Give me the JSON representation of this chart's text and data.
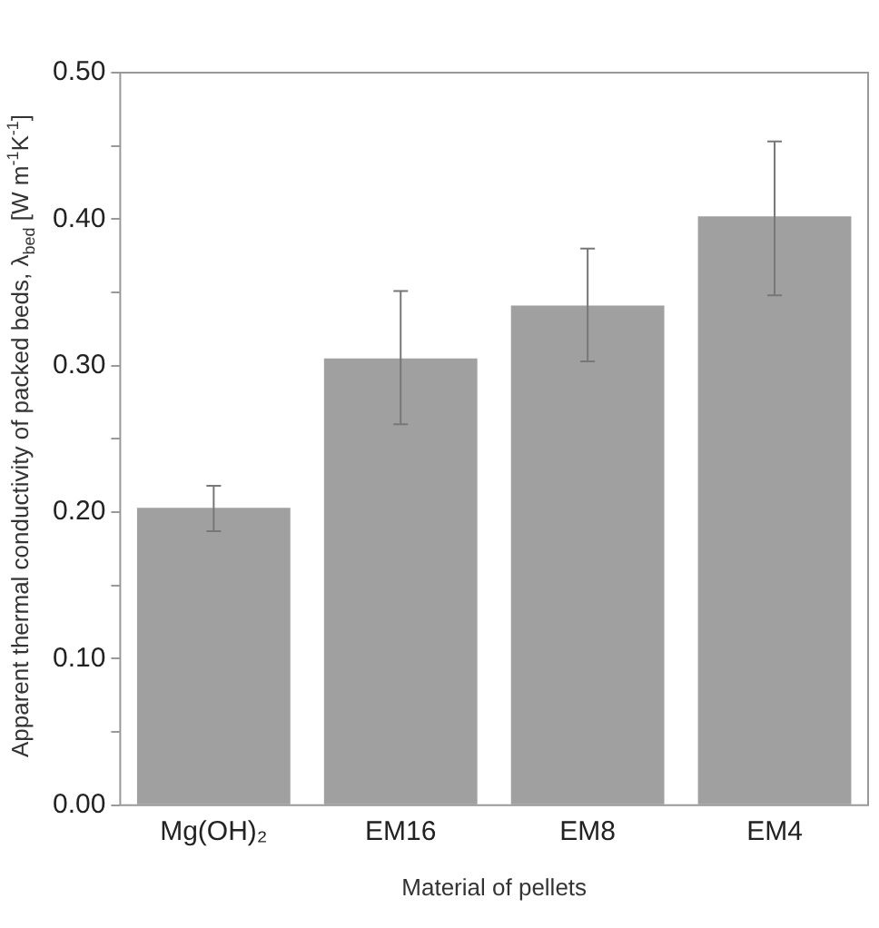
{
  "chart_data": {
    "type": "bar",
    "xlabel": "Material of pellets",
    "ylabel": "Apparent thermal conductivity of packed beds, λ$_{bed}$ [W m$^{-1}$K$^{-1}$]",
    "categories": [
      "Mg(OH)₂",
      "EM16",
      "EM8",
      "EM4"
    ],
    "values": [
      0.203,
      0.305,
      0.341,
      0.402
    ],
    "errors": [
      [
        0.187,
        0.218
      ],
      [
        0.26,
        0.351
      ],
      [
        0.303,
        0.38
      ],
      [
        0.348,
        0.453
      ]
    ],
    "color": "#a0a0a0",
    "ylim": [
      0,
      0.5
    ],
    "yticks": [
      {
        "value": 0,
        "label": "0.00"
      },
      {
        "value": 0.05,
        "label": null
      },
      {
        "value": 0.1,
        "label": "0.10"
      },
      {
        "value": 0.15,
        "label": null
      },
      {
        "value": 0.2,
        "label": "0.20"
      },
      {
        "value": 0.25,
        "label": null
      },
      {
        "value": 0.3,
        "label": "0.30"
      },
      {
        "value": 0.35,
        "label": null
      },
      {
        "value": 0.4,
        "label": "0.40"
      },
      {
        "value": 0.45,
        "label": null
      },
      {
        "value": 0.5,
        "label": "0.50"
      }
    ],
    "grid": false,
    "legend": false
  }
}
